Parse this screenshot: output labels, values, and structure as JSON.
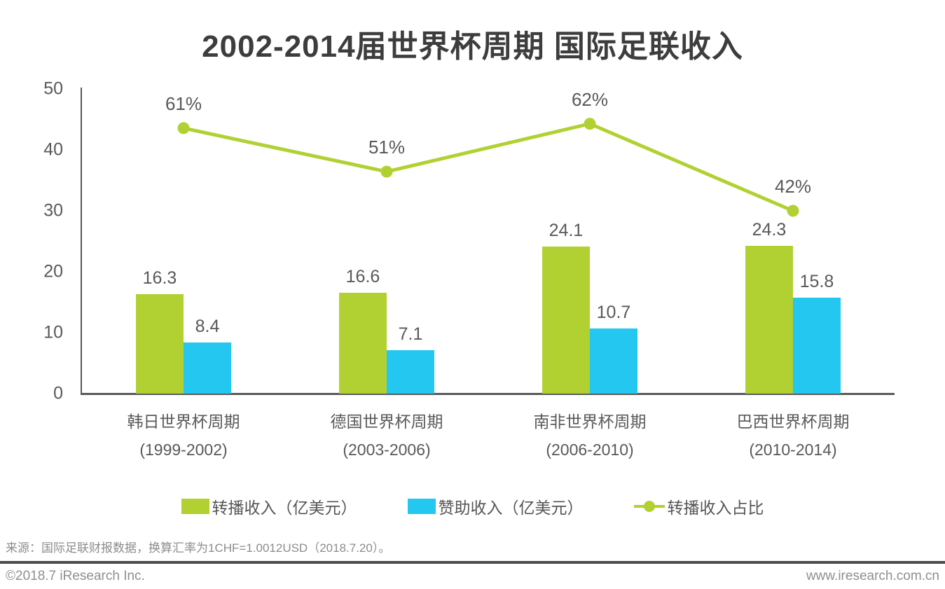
{
  "title": "2002-2014届世界杯周期 国际足联收入",
  "chart_data": {
    "type": "bar",
    "subtype": "grouped bars with overlay line on hidden secondary axis",
    "categories": [
      {
        "name": "韩日世界杯周期",
        "period": "(1999-2002)"
      },
      {
        "name": "德国世界杯周期",
        "period": "(2003-2006)"
      },
      {
        "name": "南非世界杯周期",
        "period": "(2006-2010)"
      },
      {
        "name": "巴西世界杯周期",
        "period": "(2010-2014)"
      }
    ],
    "series": [
      {
        "name": "转播收入（亿美元）",
        "type": "bar",
        "color": "#b1d133",
        "values": [
          16.3,
          16.6,
          24.1,
          24.3
        ]
      },
      {
        "name": "赞助收入（亿美元）",
        "type": "bar",
        "color": "#24c7f0",
        "values": [
          8.4,
          7.1,
          10.7,
          15.8
        ]
      },
      {
        "name": "转播收入占比",
        "type": "line",
        "color": "#b1d133",
        "unit": "%",
        "values": [
          61,
          51,
          62,
          42
        ]
      }
    ],
    "ylabel": "",
    "xlabel": "",
    "ylim": [
      0,
      50
    ],
    "ytick_step": 10,
    "y2lim": [
      0,
      70
    ],
    "y2_visible": false,
    "grid": false,
    "legend_position": "bottom",
    "axis_color": "#595959",
    "label_color": "#595959"
  },
  "source": "来源：国际足联财报数据，换算汇率为1CHF=1.0012USD（2018.7.20）。",
  "footer": {
    "copyright": "©2018.7 iResearch Inc.",
    "website": "www.iresearch.com.cn"
  }
}
